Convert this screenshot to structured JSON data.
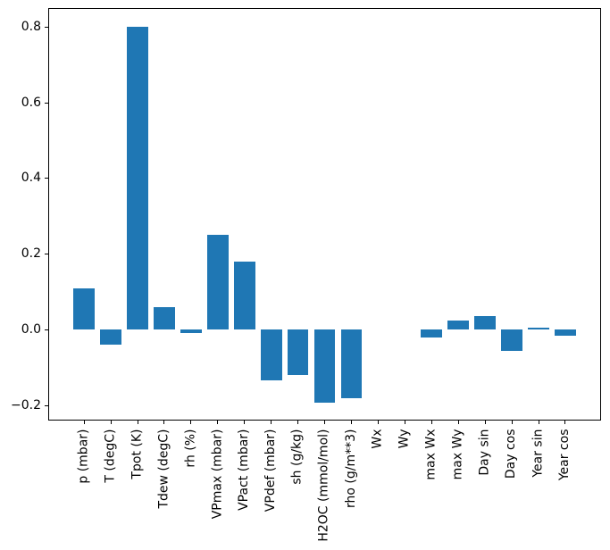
{
  "figure": {
    "background": "#ffffff",
    "frame_color": "#000000"
  },
  "chart_data": {
    "type": "bar",
    "title": "",
    "xlabel": "",
    "ylabel": "",
    "grid": false,
    "legend_position": null,
    "x_tick_rotation": 90,
    "bar_color": "#1f77b4",
    "categories": [
      "p (mbar)",
      "T (degC)",
      "Tpot (K)",
      "Tdew (degC)",
      "rh (%)",
      "VPmax (mbar)",
      "VPact (mbar)",
      "VPdef (mbar)",
      "sh (g/kg)",
      "H2OC (mmol/mol)",
      "rho (g/m**3)",
      "Wx",
      "Wy",
      "max Wx",
      "max Wy",
      "Day sin",
      "Day cos",
      "Year sin",
      "Year cos"
    ],
    "values": [
      0.11,
      -0.04,
      0.8,
      0.06,
      -0.008,
      0.25,
      0.18,
      -0.135,
      -0.12,
      -0.193,
      -0.18,
      0.0,
      0.0,
      -0.02,
      0.024,
      0.037,
      -0.055,
      0.005,
      -0.016
    ],
    "ylim": [
      -0.24,
      0.85
    ],
    "yticks": [
      {
        "value": -0.2,
        "label": "−0.2"
      },
      {
        "value": 0.0,
        "label": "0.0"
      },
      {
        "value": 0.2,
        "label": "0.2"
      },
      {
        "value": 0.4,
        "label": "0.4"
      },
      {
        "value": 0.6,
        "label": "0.6"
      },
      {
        "value": 0.8,
        "label": "0.8"
      }
    ]
  }
}
